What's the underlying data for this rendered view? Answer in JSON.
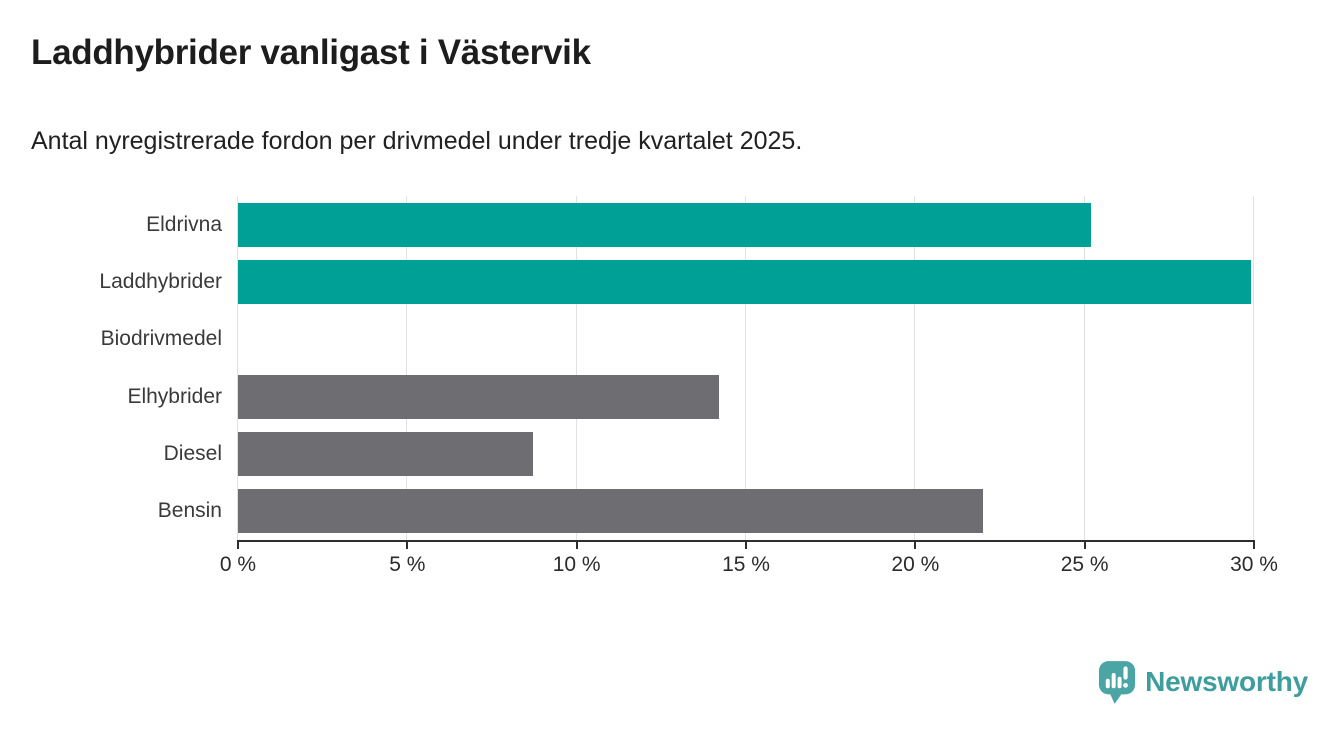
{
  "header": {
    "title": "Laddhybrider vanligast i Västervik",
    "subtitle": "Antal nyregistrerade fordon per drivmedel under tredje kvartalet 2025."
  },
  "chart_data": {
    "type": "bar",
    "orientation": "horizontal",
    "title": "Laddhybrider vanligast i Västervik",
    "subtitle": "Antal nyregistrerade fordon per drivmedel under tredje kvartalet 2025.",
    "categories": [
      "Eldrivna",
      "Laddhybrider",
      "Biodrivmedel",
      "Elhybrider",
      "Diesel",
      "Bensin"
    ],
    "values": [
      25.2,
      29.9,
      0,
      14.2,
      8.7,
      22.0
    ],
    "unit": "%",
    "bar_colors": [
      "#00a096",
      "#00a096",
      "#6d6d72",
      "#6d6d72",
      "#6d6d72",
      "#6d6d72"
    ],
    "xlabel": "",
    "ylabel": "",
    "xlim": [
      0,
      30
    ],
    "x_ticks": [
      0,
      5,
      10,
      15,
      20,
      25,
      30
    ],
    "x_tick_labels": [
      "0 %",
      "5 %",
      "10 %",
      "15 %",
      "20 %",
      "25 %",
      "30 %"
    ],
    "grid": true,
    "legend": false
  },
  "colors": {
    "highlight_teal": "#00a096",
    "neutral_gray": "#6d6d72",
    "axis": "#2e2e2e",
    "gridline": "#e1e1e4",
    "brand_teal": "#3e9d9d"
  },
  "branding": {
    "name": "Newsworthy",
    "icon": "newsworthy-pin-chart-icon"
  }
}
